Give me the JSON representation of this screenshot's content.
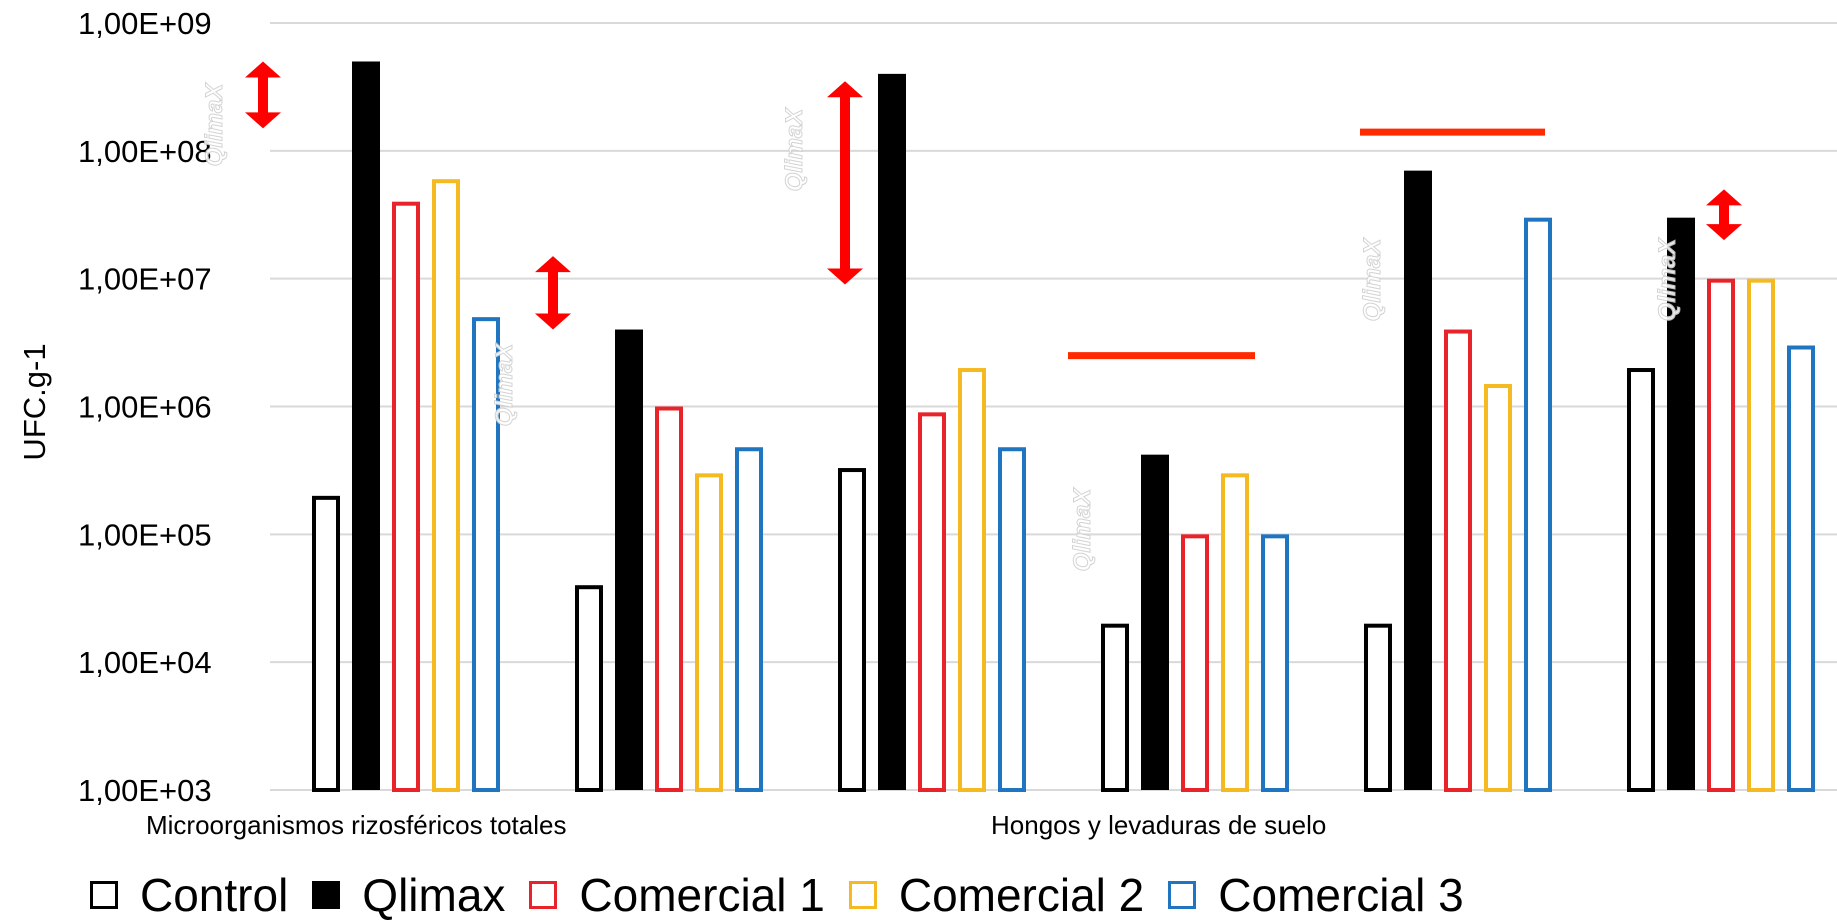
{
  "chart_data": {
    "type": "bar",
    "ylabel": "UFC.g-1",
    "yscale": "log",
    "ylim": [
      1000,
      1000000000
    ],
    "yticks": [
      "1,00E+03",
      "1,00E+04",
      "1,00E+05",
      "1,00E+06",
      "1,00E+07",
      "1,00E+08",
      "1,00E+09"
    ],
    "category_labels": [
      "Microorganismos rizosféricos totales",
      "Hongos y levaduras de suelo"
    ],
    "grid": true,
    "legend_position": "bottom",
    "series": [
      {
        "name": "Control",
        "style": "outline",
        "color": "#000000",
        "values": [
          200000,
          40000,
          330000,
          20000,
          20000,
          2000000
        ]
      },
      {
        "name": "Qlimax",
        "style": "filled",
        "color": "#000000",
        "values": [
          500000000,
          4000000,
          400000000,
          420000,
          70000000,
          30000000
        ]
      },
      {
        "name": "Comercial 1",
        "style": "outline",
        "color": "#e8232a",
        "values": [
          40000000,
          1000000,
          900000,
          100000,
          4000000,
          10000000
        ]
      },
      {
        "name": "Comercial 2",
        "style": "outline",
        "color": "#f5b921",
        "values": [
          60000000,
          300000,
          2000000,
          300000,
          1500000,
          10000000
        ]
      },
      {
        "name": "Comercial 3",
        "style": "outline",
        "color": "#1f75c0",
        "values": [
          5000000,
          480000,
          480000,
          100000,
          30000000,
          3000000
        ]
      }
    ],
    "annotations": {
      "double_arrows": [
        {
          "group": 0,
          "from": 150000000,
          "to": 500000000
        },
        {
          "group": 1,
          "from": 4000000,
          "to": 15000000
        },
        {
          "group": 2,
          "from": 9000000,
          "to": 350000000
        },
        {
          "group": 5,
          "from": 20000000,
          "to": 50000000
        }
      ],
      "lines": [
        {
          "group": 3,
          "y": 2500000
        },
        {
          "group": 4,
          "y": 140000000
        }
      ],
      "arrow_color": "#ff0000",
      "line_color": "#ff2a00"
    },
    "watermark": "QlimaX"
  }
}
